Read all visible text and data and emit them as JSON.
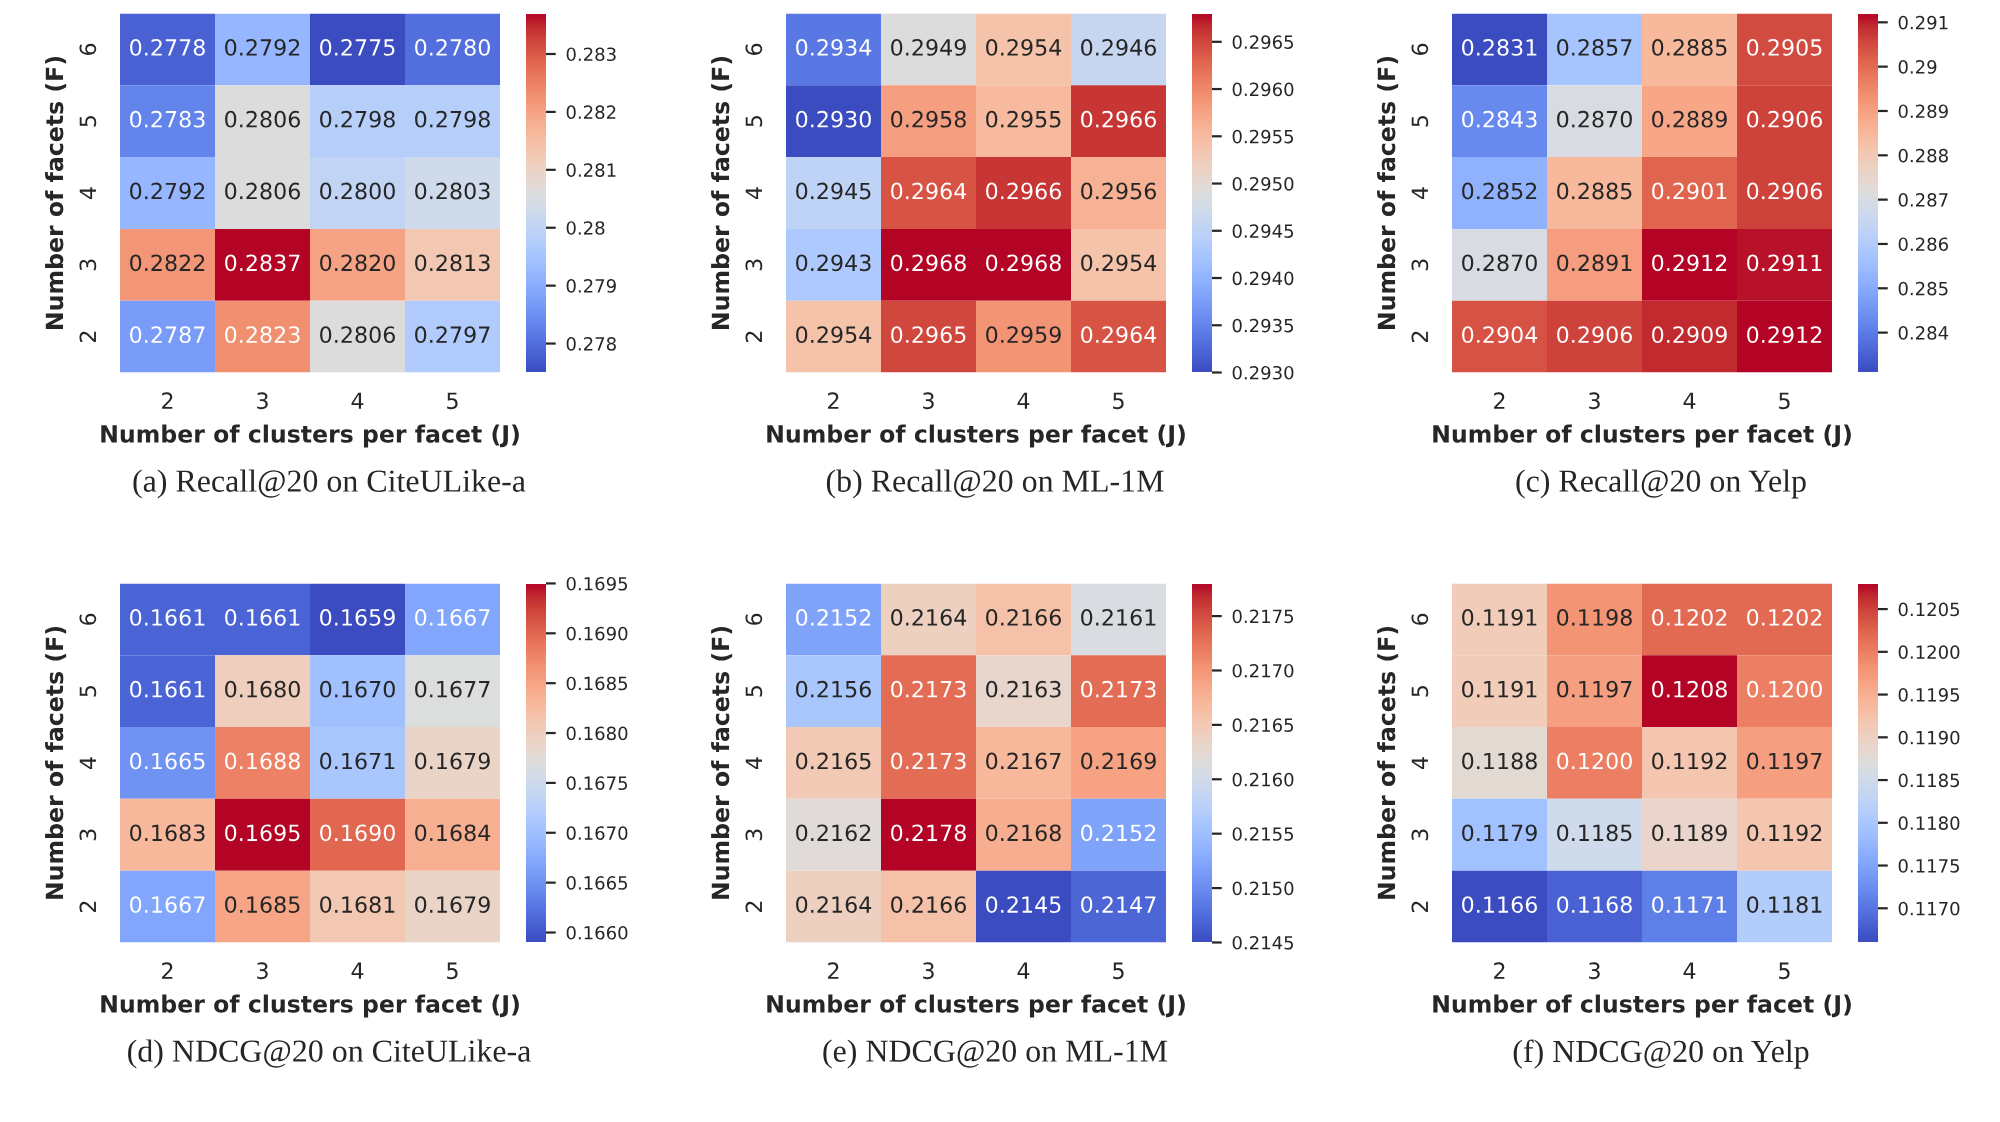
{
  "chart_data": [
    {
      "type": "heatmap",
      "title": "(a) Recall@20 on CiteULike-a",
      "xlabel": "Number of clusters per facet (J)",
      "ylabel": "Number of facets (F)",
      "categories": [
        "2",
        "3",
        "4",
        "5"
      ],
      "y_categories": [
        "6",
        "5",
        "4",
        "3",
        "2"
      ],
      "cells": [
        [
          0.2778,
          0.2792,
          0.2775,
          0.278
        ],
        [
          0.2783,
          0.2806,
          0.2798,
          0.2798
        ],
        [
          0.2792,
          0.2806,
          0.28,
          0.2803
        ],
        [
          0.2822,
          0.2837,
          0.282,
          0.2813
        ],
        [
          0.2787,
          0.2823,
          0.2806,
          0.2797
        ]
      ],
      "cell_labels": [
        [
          "0.2778",
          "0.2792",
          "0.2775",
          "0.2780"
        ],
        [
          "0.2783",
          "0.2806",
          "0.2798",
          "0.2798"
        ],
        [
          "0.2792",
          "0.2806",
          "0.2800",
          "0.2803"
        ],
        [
          "0.2822",
          "0.2837",
          "0.2820",
          "0.2813"
        ],
        [
          "0.2787",
          "0.2823",
          "0.2806",
          "0.2797"
        ]
      ],
      "clim": [
        0.2775,
        0.2837
      ],
      "cticks": [
        0.278,
        0.279,
        0.28,
        0.281,
        0.282,
        0.283
      ]
    },
    {
      "type": "heatmap",
      "title": "(b) Recall@20 on ML-1M",
      "xlabel": "Number of clusters per facet (J)",
      "ylabel": "Number of facets (F)",
      "categories": [
        "2",
        "3",
        "4",
        "5"
      ],
      "y_categories": [
        "6",
        "5",
        "4",
        "3",
        "2"
      ],
      "cells": [
        [
          0.2934,
          0.2949,
          0.2954,
          0.2946
        ],
        [
          0.293,
          0.2958,
          0.2955,
          0.2966
        ],
        [
          0.2945,
          0.2964,
          0.2966,
          0.2956
        ],
        [
          0.2943,
          0.2968,
          0.2968,
          0.2954
        ],
        [
          0.2954,
          0.2965,
          0.2959,
          0.2964
        ]
      ],
      "cell_labels": [
        [
          "0.2934",
          "0.2949",
          "0.2954",
          "0.2946"
        ],
        [
          "0.2930",
          "0.2958",
          "0.2955",
          "0.2966"
        ],
        [
          "0.2945",
          "0.2964",
          "0.2966",
          "0.2956"
        ],
        [
          "0.2943",
          "0.2968",
          "0.2968",
          "0.2954"
        ],
        [
          "0.2954",
          "0.2965",
          "0.2959",
          "0.2964"
        ]
      ],
      "clim": [
        0.293,
        0.2968
      ],
      "cticks": [
        {
          "value": 0.293,
          "label": "0.2930"
        },
        0.2935,
        {
          "value": 0.294,
          "label": "0.2940"
        },
        0.2945,
        {
          "value": 0.295,
          "label": "0.2950"
        },
        0.2955,
        {
          "value": 0.296,
          "label": "0.2960"
        },
        0.2965
      ]
    },
    {
      "type": "heatmap",
      "title": "(c) Recall@20 on Yelp",
      "xlabel": "Number of clusters per facet (J)",
      "ylabel": "Number of facets (F)",
      "categories": [
        "2",
        "3",
        "4",
        "5"
      ],
      "y_categories": [
        "6",
        "5",
        "4",
        "3",
        "2"
      ],
      "cells": [
        [
          0.2831,
          0.2857,
          0.2885,
          0.2905
        ],
        [
          0.2843,
          0.287,
          0.2889,
          0.2906
        ],
        [
          0.2852,
          0.2885,
          0.2901,
          0.2906
        ],
        [
          0.287,
          0.2891,
          0.2912,
          0.2911
        ],
        [
          0.2904,
          0.2906,
          0.2909,
          0.2912
        ]
      ],
      "cell_labels": [
        [
          "0.2831",
          "0.2857",
          "0.2885",
          "0.2905"
        ],
        [
          "0.2843",
          "0.2870",
          "0.2889",
          "0.2906"
        ],
        [
          "0.2852",
          "0.2885",
          "0.2901",
          "0.2906"
        ],
        [
          "0.2870",
          "0.2891",
          "0.2912",
          "0.2911"
        ],
        [
          "0.2904",
          "0.2906",
          "0.2909",
          "0.2912"
        ]
      ],
      "clim": [
        0.2831,
        0.2912
      ],
      "cticks": [
        0.284,
        0.285,
        0.286,
        0.287,
        0.288,
        0.289,
        0.29,
        0.291
      ]
    },
    {
      "type": "heatmap",
      "title": "(d) NDCG@20 on CiteULike-a",
      "xlabel": "Number of clusters per facet (J)",
      "ylabel": "Number of facets (F)",
      "categories": [
        "2",
        "3",
        "4",
        "5"
      ],
      "y_categories": [
        "6",
        "5",
        "4",
        "3",
        "2"
      ],
      "cells": [
        [
          0.1661,
          0.1661,
          0.1659,
          0.1667
        ],
        [
          0.1661,
          0.168,
          0.167,
          0.1677
        ],
        [
          0.1665,
          0.1688,
          0.1671,
          0.1679
        ],
        [
          0.1683,
          0.1695,
          0.169,
          0.1684
        ],
        [
          0.1667,
          0.1685,
          0.1681,
          0.1679
        ]
      ],
      "cell_labels": [
        [
          "0.1661",
          "0.1661",
          "0.1659",
          "0.1667"
        ],
        [
          "0.1661",
          "0.1680",
          "0.1670",
          "0.1677"
        ],
        [
          "0.1665",
          "0.1688",
          "0.1671",
          "0.1679"
        ],
        [
          "0.1683",
          "0.1695",
          "0.1690",
          "0.1684"
        ],
        [
          "0.1667",
          "0.1685",
          "0.1681",
          "0.1679"
        ]
      ],
      "clim": [
        0.1659,
        0.1695
      ],
      "cticks": [
        {
          "value": 0.166,
          "label": "0.1660"
        },
        0.1665,
        {
          "value": 0.167,
          "label": "0.1670"
        },
        0.1675,
        {
          "value": 0.168,
          "label": "0.1680"
        },
        0.1685,
        {
          "value": 0.169,
          "label": "0.1690"
        },
        0.1695
      ]
    },
    {
      "type": "heatmap",
      "title": "(e) NDCG@20 on ML-1M",
      "xlabel": "Number of clusters per facet (J)",
      "ylabel": "Number of facets (F)",
      "categories": [
        "2",
        "3",
        "4",
        "5"
      ],
      "y_categories": [
        "6",
        "5",
        "4",
        "3",
        "2"
      ],
      "cells": [
        [
          0.2152,
          0.2164,
          0.2166,
          0.2161
        ],
        [
          0.2156,
          0.2173,
          0.2163,
          0.2173
        ],
        [
          0.2165,
          0.2173,
          0.2167,
          0.2169
        ],
        [
          0.2162,
          0.2178,
          0.2168,
          0.2152
        ],
        [
          0.2164,
          0.2166,
          0.2145,
          0.2147
        ]
      ],
      "cell_labels": [
        [
          "0.2152",
          "0.2164",
          "0.2166",
          "0.2161"
        ],
        [
          "0.2156",
          "0.2173",
          "0.2163",
          "0.2173"
        ],
        [
          "0.2165",
          "0.2173",
          "0.2167",
          "0.2169"
        ],
        [
          "0.2162",
          "0.2178",
          "0.2168",
          "0.2152"
        ],
        [
          "0.2164",
          "0.2166",
          "0.2145",
          "0.2147"
        ]
      ],
      "clim": [
        0.2145,
        0.2178
      ],
      "cticks": [
        0.2145,
        {
          "value": 0.215,
          "label": "0.2150"
        },
        0.2155,
        {
          "value": 0.216,
          "label": "0.2160"
        },
        0.2165,
        {
          "value": 0.217,
          "label": "0.2170"
        },
        0.2175
      ]
    },
    {
      "type": "heatmap",
      "title": "(f) NDCG@20 on Yelp",
      "xlabel": "Number of clusters per facet (J)",
      "ylabel": "Number of facets (F)",
      "categories": [
        "2",
        "3",
        "4",
        "5"
      ],
      "y_categories": [
        "6",
        "5",
        "4",
        "3",
        "2"
      ],
      "cells": [
        [
          0.1191,
          0.1198,
          0.1202,
          0.1202
        ],
        [
          0.1191,
          0.1197,
          0.1208,
          0.12
        ],
        [
          0.1188,
          0.12,
          0.1192,
          0.1197
        ],
        [
          0.1179,
          0.1185,
          0.1189,
          0.1192
        ],
        [
          0.1166,
          0.1168,
          0.1171,
          0.1181
        ]
      ],
      "cell_labels": [
        [
          "0.1191",
          "0.1198",
          "0.1202",
          "0.1202"
        ],
        [
          "0.1191",
          "0.1197",
          "0.1208",
          "0.1200"
        ],
        [
          "0.1188",
          "0.1200",
          "0.1192",
          "0.1197"
        ],
        [
          "0.1179",
          "0.1185",
          "0.1189",
          "0.1192"
        ],
        [
          "0.1166",
          "0.1168",
          "0.1171",
          "0.1181"
        ]
      ],
      "clim": [
        0.1166,
        0.1208
      ],
      "cticks": [
        {
          "value": 0.117,
          "label": "0.1170"
        },
        0.1175,
        {
          "value": 0.118,
          "label": "0.1180"
        },
        0.1185,
        {
          "value": 0.119,
          "label": "0.1190"
        },
        0.1195,
        {
          "value": 0.12,
          "label": "0.1200"
        },
        0.1205
      ]
    }
  ]
}
